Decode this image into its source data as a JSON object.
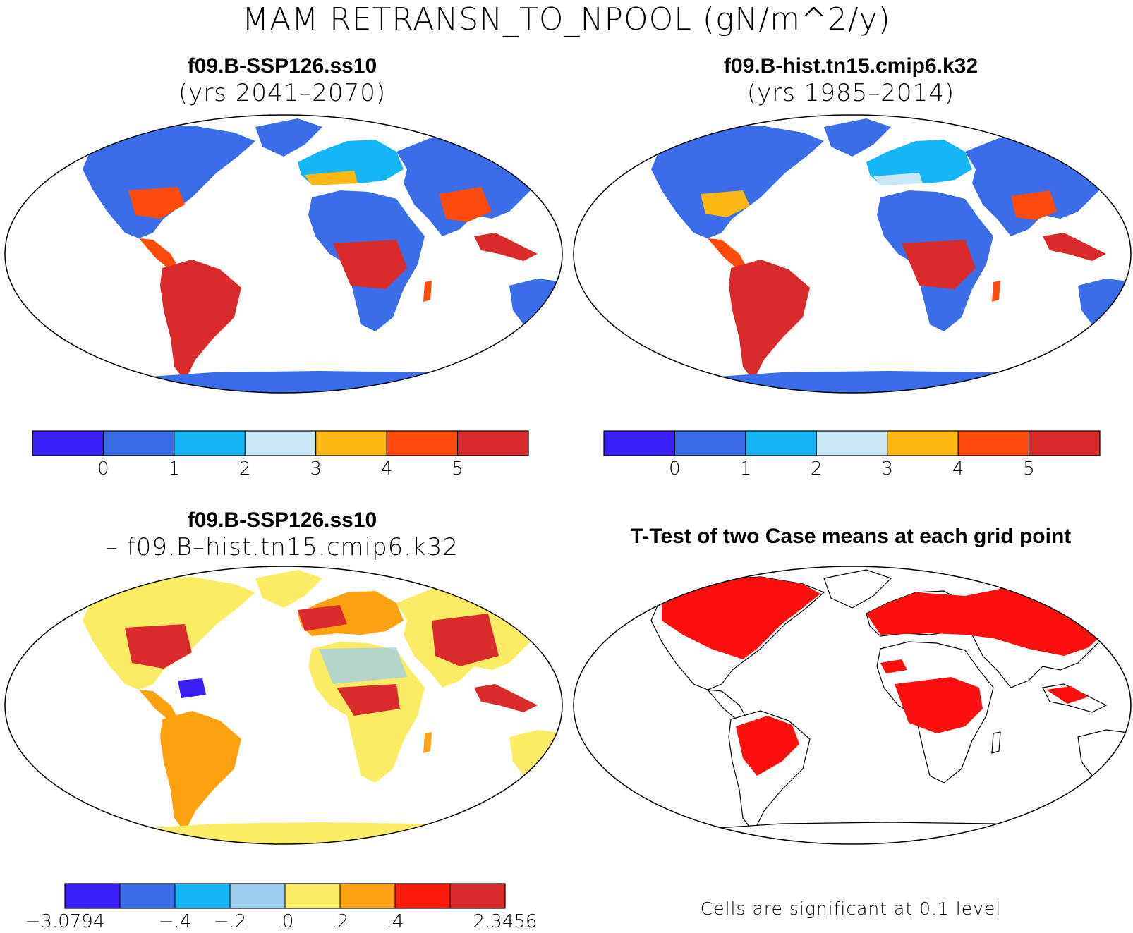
{
  "main_title": "MAM RETRANSN_TO_NPOOL (gN/m^2/y)",
  "colors": {
    "abs": [
      "#3a1ff7",
      "#3b6de8",
      "#16b5f5",
      "#c9e8f6",
      "#fdb813",
      "#fe4a0a",
      "#d92b2b"
    ],
    "diff": [
      "#3a1ff7",
      "#3b6de8",
      "#16b5f5",
      "#9dcdee",
      "#fbec65",
      "#fca10f",
      "#fc1a0c",
      "#d92b2b"
    ],
    "significant": "#fc0f0f",
    "land_outline": "#000000"
  },
  "panels": [
    {
      "id": "case1",
      "title_line1": "f09.B-SSP126.ss10",
      "title_line2": "(yrs 2041–2070)",
      "colorbar_labels": [
        "0",
        "1",
        "2",
        "3",
        "4",
        "5"
      ]
    },
    {
      "id": "case2",
      "title_line1": "f09.B-hist.tn15.cmip6.k32",
      "title_line2": "(yrs 1985–2014)",
      "colorbar_labels": [
        "0",
        "1",
        "2",
        "3",
        "4",
        "5"
      ]
    },
    {
      "id": "difference",
      "title_line1": "f09.B-SSP126.ss10",
      "title_line2": "– f09.B–hist.tn15.cmip6.k32",
      "colorbar_labels": [
        "−3.0794",
        "−.4",
        "−.2",
        ".0",
        ".2",
        ".4",
        "2.3456"
      ]
    },
    {
      "id": "ttest",
      "title": "T-Test of two Case means at each grid point",
      "note": "Cells are significant at 0.1 level"
    }
  ]
}
